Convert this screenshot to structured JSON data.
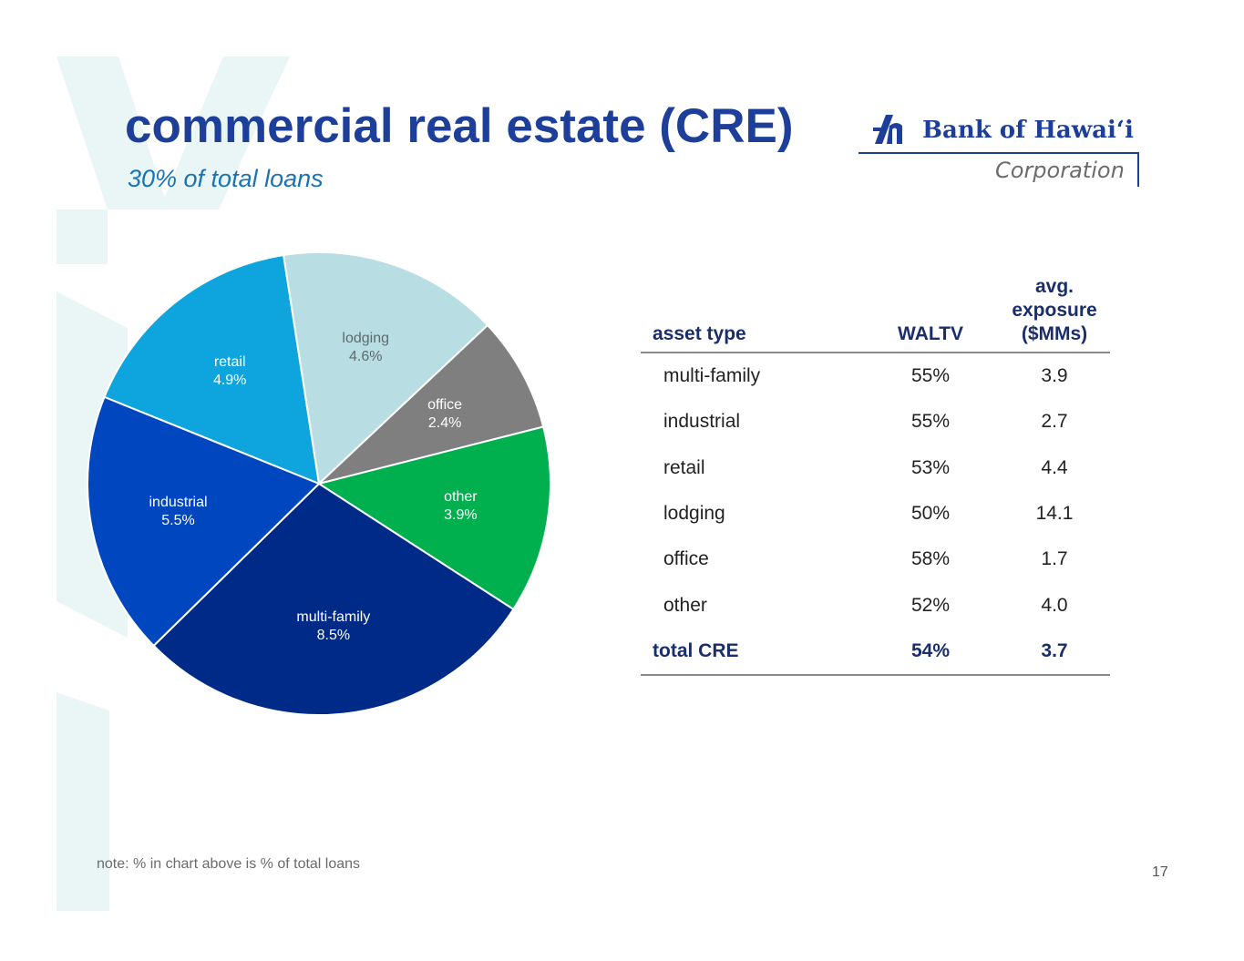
{
  "title": "commercial real estate (CRE)",
  "subtitle": "30% of total loans",
  "logo": {
    "brand": "Bank of Hawaiʻi",
    "sub": "Corporation"
  },
  "chart_data": {
    "type": "pie",
    "unit": "% of total loans",
    "slices": [
      {
        "label": "retail",
        "value": 4.9,
        "value_text": "4.9%",
        "color": "#0ea5df",
        "label_color": "#ffffff"
      },
      {
        "label": "lodging",
        "value": 4.6,
        "value_text": "4.6%",
        "color": "#b8dde3",
        "label_color": "#5e6b6e"
      },
      {
        "label": "office",
        "value": 2.4,
        "value_text": "2.4%",
        "color": "#7f7f7f",
        "label_color": "#ffffff"
      },
      {
        "label": "other",
        "value": 3.9,
        "value_text": "3.9%",
        "color": "#00b04f",
        "label_color": "#ffffff"
      },
      {
        "label": "multi-family",
        "value": 8.5,
        "value_text": "8.5%",
        "color": "#002a87",
        "label_color": "#ffffff"
      },
      {
        "label": "industrial",
        "value": 5.5,
        "value_text": "5.5%",
        "color": "#0046bf",
        "label_color": "#ffffff"
      }
    ]
  },
  "table": {
    "headers": {
      "asset_type": "asset type",
      "waltv": "WALTV",
      "exposure": [
        "avg.",
        "exposure",
        "($MMs)"
      ]
    },
    "rows": [
      {
        "asset": "multi-family",
        "waltv": "55%",
        "exposure": "3.9"
      },
      {
        "asset": "industrial",
        "waltv": "55%",
        "exposure": "2.7"
      },
      {
        "asset": "retail",
        "waltv": "53%",
        "exposure": "4.4"
      },
      {
        "asset": "lodging",
        "waltv": "50%",
        "exposure": "14.1"
      },
      {
        "asset": "office",
        "waltv": "58%",
        "exposure": "1.7"
      },
      {
        "asset": "other",
        "waltv": "52%",
        "exposure": "4.0"
      }
    ],
    "total": {
      "asset": "total CRE",
      "waltv": "54%",
      "exposure": "3.7"
    }
  },
  "note": "note: % in chart above is % of total loans",
  "page_number": "17"
}
